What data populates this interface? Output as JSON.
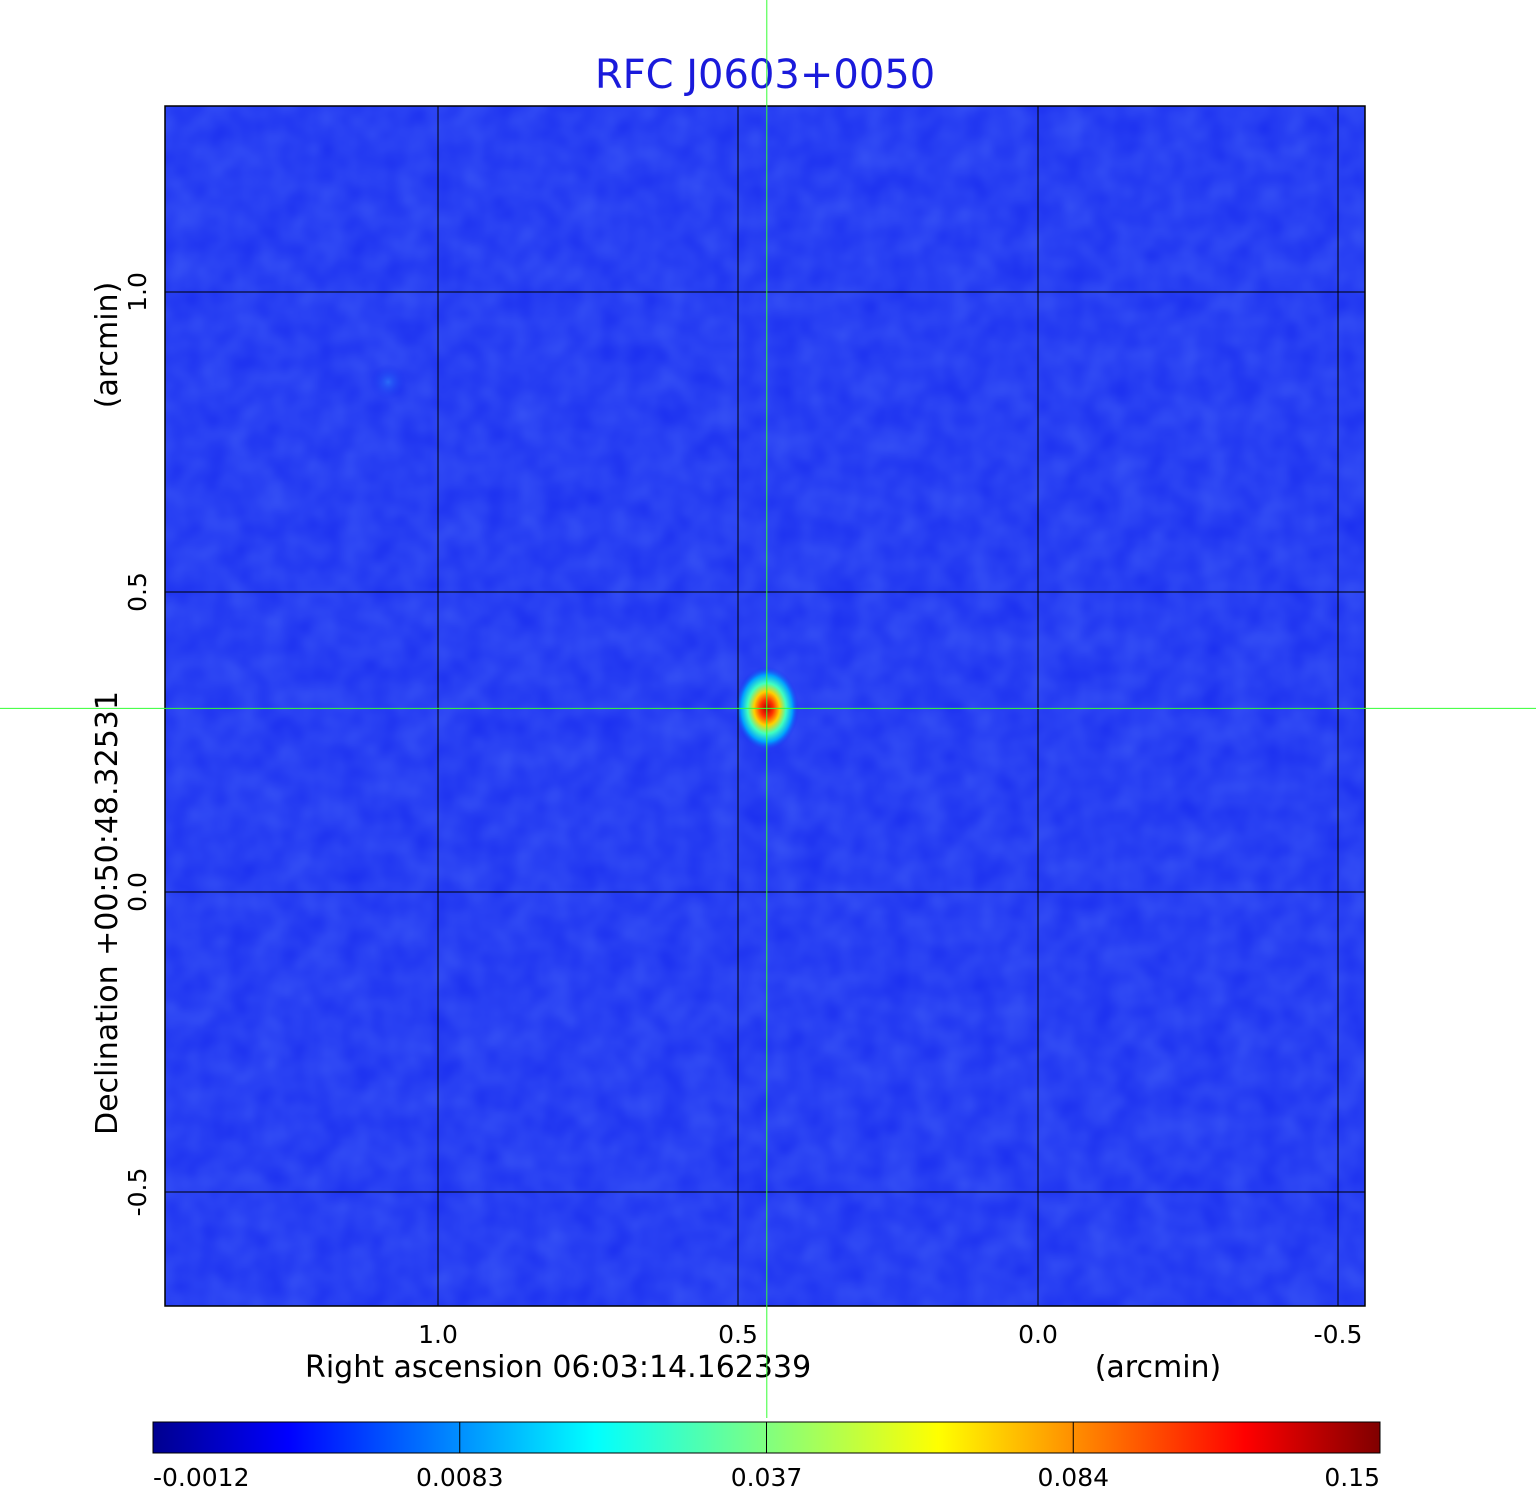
{
  "chart_data": {
    "type": "heatmap",
    "title": "RFC J0603+0050",
    "xlabel": "Right ascension  06:03:14.162339",
    "xunit": "(arcmin)",
    "ylabel": "Declination  +00:50:48.32531",
    "yunit": "(arcmin)",
    "xlim": [
      1.455,
      -0.545
    ],
    "ylim": [
      -0.69,
      1.31
    ],
    "x_ticks": [
      1.0,
      0.5,
      0.0,
      -0.5
    ],
    "x_tick_labels": [
      "1.0",
      "0.5",
      "0.0",
      "-0.5"
    ],
    "y_ticks": [
      1.0,
      0.5,
      0.0,
      -0.5
    ],
    "y_tick_labels": [
      "1.0",
      "0.5",
      "0.0",
      "-0.5"
    ],
    "grid": true,
    "colormap": "jet",
    "colorbar": {
      "position": "bottom",
      "tick_labels": [
        "-0.0012",
        "0.0083",
        "0.037",
        "0.084",
        "0.15"
      ],
      "range": [
        -0.0012,
        0.15
      ]
    },
    "crosshair": {
      "x": 0.452,
      "y": 0.306
    },
    "sources": [
      {
        "x": 0.452,
        "y": 0.306,
        "peak": 0.15
      },
      {
        "x": 1.083,
        "y": 0.85,
        "peak": 0.006
      }
    ],
    "background_level": 0.001
  },
  "colors": {
    "title": "#1a1adb",
    "crosshair": "#33ff33",
    "grid": "#000000",
    "background_map": "#1a2ef0"
  }
}
